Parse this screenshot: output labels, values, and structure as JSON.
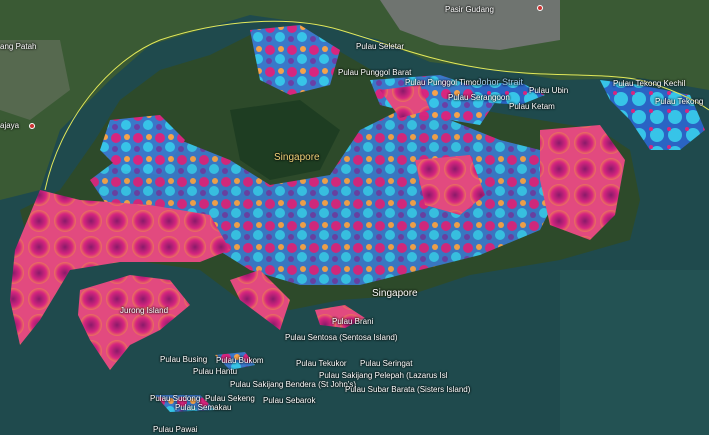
{
  "map": {
    "colors": {
      "sea": "#1f4a4d",
      "land": "#2d4a2a",
      "urban": "#7a7c79",
      "overlay_magenta": "#d7267f",
      "overlay_orange": "#f6a24a",
      "overlay_cyan": "#37c4e8",
      "overlay_blue": "#2a64c4",
      "border_line": "#e2e85a"
    },
    "labels": {
      "pasir_gudang": "Pasir Gudang",
      "ang_patah": "ang Patah",
      "ajaya": "ajaya",
      "pulau_selatar": "Pulau Seletar",
      "pulau_punggol_barat": "Pulau Punggol Barat",
      "pulau_punggol_timor": "Pulau Punggol Timor",
      "johor_strait": "Johor Strait",
      "pulau_tekong_kechil": "Pulau Tekong Kechil",
      "pulau_tekong": "Pulau Tekong",
      "pulau_ubin": "Pulau Ubin",
      "pulau_serangoon": "Pulau Serangoon",
      "pulau_ketam": "Pulau Ketam",
      "singapore_center": "Singapore",
      "singapore_city": "Singapore",
      "jurong_island": "Jurong Island",
      "pulau_brani": "Pulau Brani",
      "pulau_sentosa": "Pulau Sentosa (Sentosa Island)",
      "pulau_busing": "Pulau Busing",
      "pulau_bukom": "Pulau Bukom",
      "pulau_hantu": "Pulau Hantu",
      "pulau_tekukor": "Pulau Tekukor",
      "pulau_seringat": "Pulau Seringat",
      "pulau_sakijang_pelepah": "Pulau Sakijang Pelepah (Lazarus Isl",
      "pulau_sakijang_bendera": "Pulau Sakijang Bendera (St John's)",
      "pulau_subar_barata": "Pulau Subar Barata (Sisters Island)",
      "pulau_sudong": "Pulau Sudong",
      "pulau_sekeng": "Pulau Sekeng",
      "pulau_sebarok": "Pulau Sebarok",
      "pulau_semakau": "Pulau Semakau",
      "pulau_pawai": "Pulau Pawai"
    }
  }
}
